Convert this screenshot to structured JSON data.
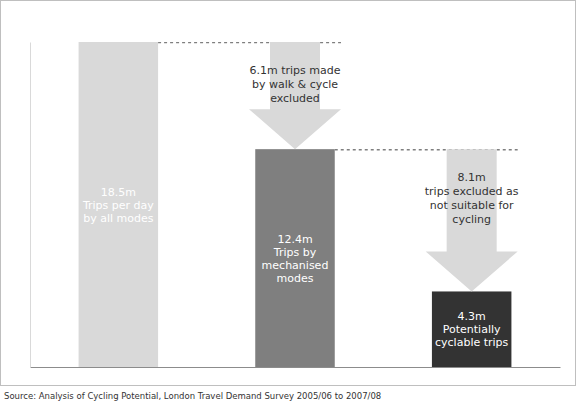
{
  "chart_data": {
    "type": "waterfall",
    "values": [
      18.5,
      12.4,
      4.3
    ],
    "value_labels": [
      "18.5m",
      "12.4m",
      "4.3m"
    ],
    "bar_texts": [
      [
        "Trips per day",
        "by all modes"
      ],
      [
        "Trips by",
        "mechanised",
        "modes"
      ],
      [
        "Potentially",
        "cyclable trips"
      ]
    ],
    "colors": [
      "#d9d9d9",
      "#7f7f7f",
      "#333333"
    ],
    "ylim": [
      0,
      18.5
    ],
    "tick_labels": false,
    "data_labels": true,
    "annotations": [
      {
        "value": 6.1,
        "lines": [
          "6.1m trips made",
          "by walk & cycle",
          "excluded"
        ]
      },
      {
        "value": 8.1,
        "lines": [
          "8.1m",
          "trips excluded as",
          "not suitable for",
          "cycling"
        ]
      }
    ],
    "source": "Source: Analysis of Cycling Potential, London Travel Demand Survey 2005/06 to 2007/08"
  }
}
